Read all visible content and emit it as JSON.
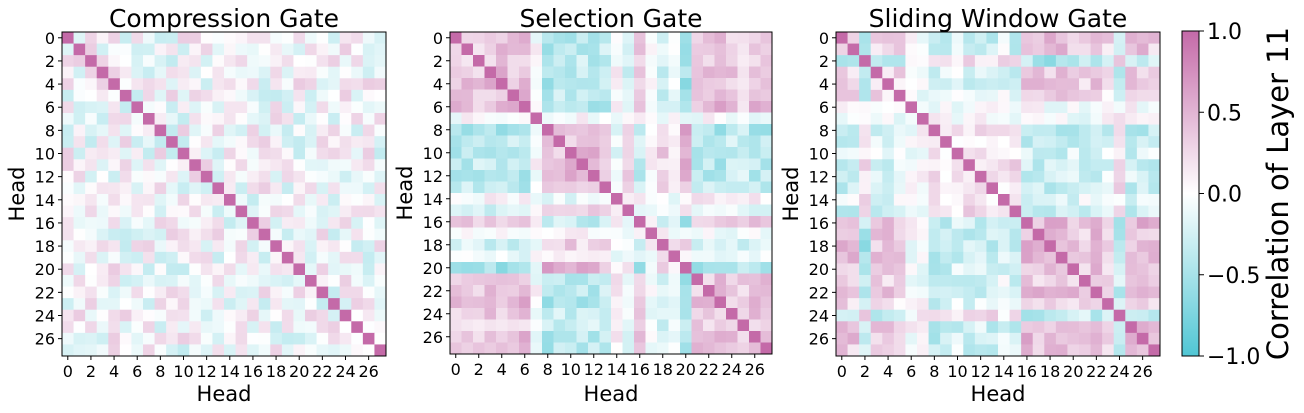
{
  "colors": {
    "neg": "#50c6d4",
    "mid": "#ffffff",
    "pos": "#c46aa8"
  },
  "colorbar": {
    "label": "Correlation of Layer 11",
    "ticks": [
      1.0,
      0.5,
      0.0,
      -0.5,
      -1.0
    ],
    "tick_labels": [
      "1.0",
      "0.5",
      "0.0",
      "−0.5",
      "−1.0"
    ]
  },
  "chart_data": [
    {
      "type": "heatmap",
      "title": "Compression Gate",
      "xlabel": "Head",
      "ylabel": "Head",
      "n": 28,
      "xticks": [
        "0",
        "2",
        "4",
        "6",
        "8",
        "10",
        "12",
        "14",
        "16",
        "18",
        "20",
        "22",
        "24",
        "26"
      ],
      "yticks": [
        "0",
        "2",
        "4",
        "6",
        "8",
        "10",
        "12",
        "14",
        "16",
        "18",
        "20",
        "22",
        "24",
        "26"
      ],
      "vmin": -1.0,
      "vmax": 1.0,
      "diagonal": 1.0,
      "pattern": {
        "kind": "weak-random",
        "amplitude": 0.35,
        "seed": 7
      }
    },
    {
      "type": "heatmap",
      "title": "Selection Gate",
      "xlabel": "Head",
      "ylabel": "Head",
      "n": 28,
      "xticks": [
        "0",
        "2",
        "4",
        "6",
        "8",
        "10",
        "12",
        "14",
        "16",
        "18",
        "20",
        "22",
        "24",
        "26"
      ],
      "yticks": [
        "0",
        "2",
        "4",
        "6",
        "8",
        "10",
        "12",
        "14",
        "16",
        "18",
        "20",
        "22",
        "24",
        "26"
      ],
      "vmin": -1.0,
      "vmax": 1.0,
      "diagonal": 1.0,
      "pattern": {
        "kind": "block",
        "head_loading": [
          0.5,
          0.45,
          0.45,
          0.5,
          0.55,
          0.5,
          0.55,
          0.0,
          -0.6,
          -0.45,
          -0.55,
          -0.5,
          -0.55,
          -0.45,
          0.1,
          -0.25,
          0.45,
          0.0,
          -0.35,
          -0.1,
          -0.65,
          0.5,
          0.45,
          0.55,
          0.45,
          0.35,
          0.5,
          0.45
        ],
        "noise": 0.18,
        "seed": 11
      }
    },
    {
      "type": "heatmap",
      "title": "Sliding Window Gate",
      "xlabel": "Head",
      "ylabel": "Head",
      "n": 28,
      "xticks": [
        "0",
        "2",
        "4",
        "6",
        "8",
        "10",
        "12",
        "14",
        "16",
        "18",
        "20",
        "22",
        "24",
        "26"
      ],
      "yticks": [
        "0",
        "2",
        "4",
        "6",
        "8",
        "10",
        "12",
        "14",
        "16",
        "18",
        "20",
        "22",
        "24",
        "26"
      ],
      "vmin": -1.0,
      "vmax": 1.0,
      "diagonal": 1.0,
      "pattern": {
        "kind": "block",
        "head_loading": [
          0.55,
          0.45,
          -0.5,
          0.4,
          0.45,
          0.35,
          0.0,
          -0.05,
          -0.45,
          -0.35,
          -0.3,
          -0.35,
          -0.3,
          -0.35,
          -0.2,
          -0.4,
          0.55,
          0.5,
          0.6,
          0.55,
          0.5,
          0.45,
          0.55,
          0.35,
          -0.45,
          0.5,
          0.55,
          0.45
        ],
        "noise": 0.2,
        "seed": 23
      }
    }
  ]
}
